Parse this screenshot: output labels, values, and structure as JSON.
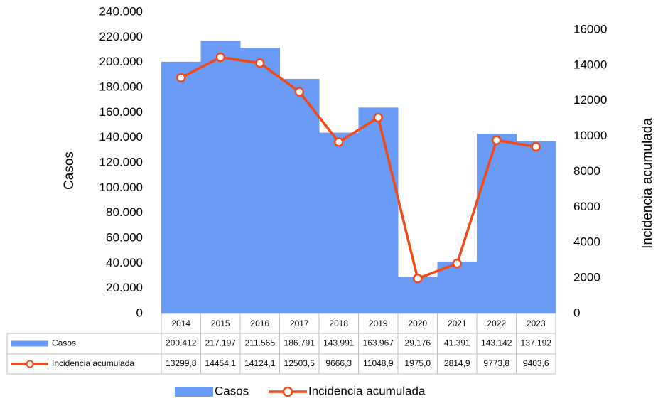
{
  "chart_data": {
    "type": "bar_line",
    "y_label": "Casos",
    "y2_label": "Incidencia acumulada",
    "categories": [
      "2014",
      "2015",
      "2016",
      "2017",
      "2018",
      "2019",
      "2020",
      "2021",
      "2022",
      "2023"
    ],
    "series": [
      {
        "name": "Casos",
        "type": "bar",
        "color": "#6a9bf7",
        "values": [
          200412,
          217197,
          211565,
          186791,
          143991,
          163967,
          29176,
          41391,
          143142,
          137192
        ],
        "value_labels": [
          "200.412",
          "217.197",
          "211.565",
          "186.791",
          "143.991",
          "163.967",
          "29.176",
          "41.391",
          "143.142",
          "137.192"
        ]
      },
      {
        "name": "Incidencia acumulada",
        "type": "line",
        "axis": "y2",
        "color": "#f04a1a",
        "values": [
          13299.8,
          14454.1,
          14124.1,
          12503.5,
          9666.3,
          11048.9,
          1975.0,
          2814.9,
          9773.8,
          9403.6
        ],
        "value_labels": [
          "13299,8",
          "14454,1",
          "14124,1",
          "12503,5",
          "9666,3",
          "11048,9",
          "1975,0",
          "2814,9",
          "9773,8",
          "9403,6"
        ]
      }
    ],
    "ylim": [
      0,
      240000
    ],
    "yticks": [
      0,
      {
        "value": 20000,
        "label": "20.000"
      },
      {
        "value": 40000,
        "label": "40.000"
      },
      {
        "value": 60000,
        "label": "60.000"
      },
      {
        "value": 80000,
        "label": "80.000"
      },
      {
        "value": 100000,
        "label": "100.000"
      },
      {
        "value": 120000,
        "label": "120.000"
      },
      {
        "value": 140000,
        "label": "140.000"
      },
      {
        "value": 160000,
        "label": "160.000"
      },
      {
        "value": 180000,
        "label": "180.000"
      },
      {
        "value": 200000,
        "label": "200.000"
      },
      {
        "value": 220000,
        "label": "220.000"
      },
      {
        "value": 240000,
        "label": "240.000"
      }
    ],
    "y2lim": [
      0,
      17000
    ],
    "y2ticks": [
      0,
      2000,
      4000,
      6000,
      8000,
      10000,
      12000,
      14000,
      16000
    ],
    "legend": "bottom"
  }
}
